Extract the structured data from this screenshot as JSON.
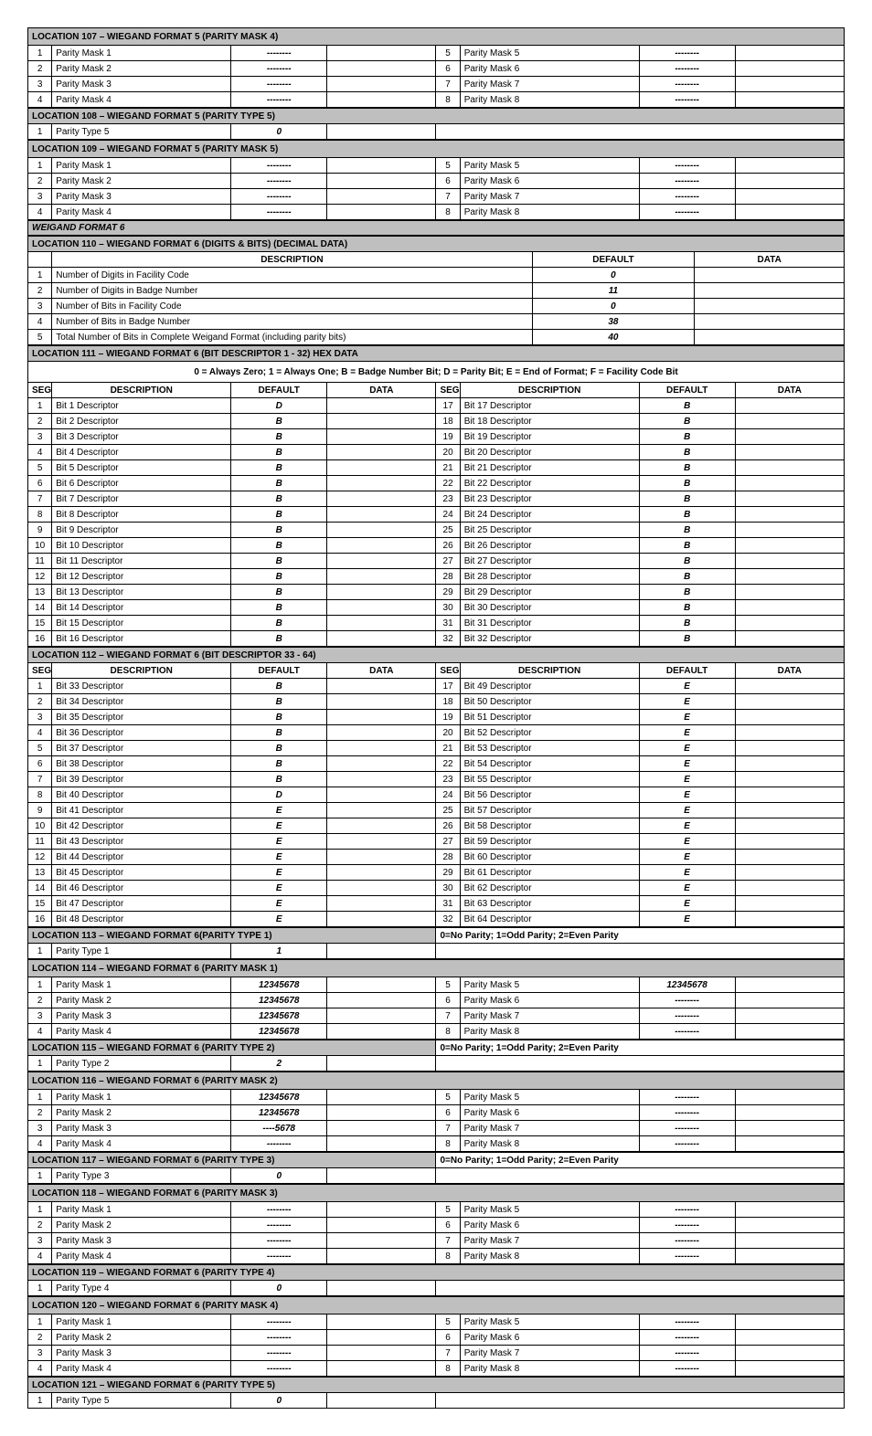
{
  "dashes": "--------",
  "parityNote": "0=No Parity;  1=Odd Parity;  2=Even Parity",
  "legend111": "0 = Always Zero; 1 = Always One; B = Badge Number Bit; D = Parity Bit; E = End of Format; F = Facility Code Bit",
  "loc107": {
    "title": "LOCATION 107 – WIEGAND FORMAT 5 (PARITY MASK 4)",
    "rows": [
      {
        "l": "1",
        "ld": "Parity Mask 1",
        "lv": "--------",
        "r": "5",
        "rd": "Parity Mask 5",
        "rv": "--------"
      },
      {
        "l": "2",
        "ld": "Parity Mask 2",
        "lv": "--------",
        "r": "6",
        "rd": "Parity Mask 6",
        "rv": "--------"
      },
      {
        "l": "3",
        "ld": "Parity Mask 3",
        "lv": "--------",
        "r": "7",
        "rd": "Parity Mask 7",
        "rv": "--------"
      },
      {
        "l": "4",
        "ld": "Parity Mask 4",
        "lv": "--------",
        "r": "8",
        "rd": "Parity Mask 8",
        "rv": "--------"
      }
    ]
  },
  "loc108": {
    "title": "LOCATION 108 – WIEGAND FORMAT 5 (PARITY TYPE 5)",
    "row": {
      "l": "1",
      "ld": "Parity Type 5",
      "lv": "0"
    }
  },
  "loc109": {
    "title": "LOCATION 109 – WIEGAND FORMAT 5 (PARITY MASK 5)",
    "rows": [
      {
        "l": "1",
        "ld": "Parity Mask 1",
        "lv": "--------",
        "r": "5",
        "rd": "Parity Mask 5",
        "rv": "--------"
      },
      {
        "l": "2",
        "ld": "Parity Mask 2",
        "lv": "--------",
        "r": "6",
        "rd": "Parity Mask 6",
        "rv": "--------"
      },
      {
        "l": "3",
        "ld": "Parity Mask 3",
        "lv": "--------",
        "r": "7",
        "rd": "Parity Mask 7",
        "rv": "--------"
      },
      {
        "l": "4",
        "ld": "Parity Mask 4",
        "lv": "--------",
        "r": "8",
        "rd": "Parity Mask 8",
        "rv": "--------"
      }
    ]
  },
  "wf6": "WEIGAND FORMAT 6",
  "loc110": {
    "title": "LOCATION 110 – WIEGAND FORMAT 6 (DIGITS & BITS)  (DECIMAL DATA)",
    "hdr": {
      "desc": "DESCRIPTION",
      "def": "DEFAULT",
      "data": "DATA"
    },
    "rows": [
      {
        "n": "1",
        "d": "Number of Digits in Facility Code",
        "v": "0"
      },
      {
        "n": "2",
        "d": "Number of Digits in Badge Number",
        "v": "11"
      },
      {
        "n": "3",
        "d": "Number of Bits in Facility Code",
        "v": "0"
      },
      {
        "n": "4",
        "d": "Number of Bits in Badge Number",
        "v": "38"
      },
      {
        "n": "5",
        "d": "Total Number of Bits in Complete Weigand Format (including parity bits)",
        "v": "40"
      }
    ]
  },
  "loc111": {
    "title": "LOCATION 111 – WIEGAND FORMAT 6 (BIT DESCRIPTOR 1 - 32)  HEX DATA",
    "hdr": {
      "seg": "SEG",
      "desc": "DESCRIPTION",
      "def": "DEFAULT",
      "data": "DATA"
    },
    "left": [
      {
        "n": "1",
        "d": "Bit 1 Descriptor",
        "v": "D"
      },
      {
        "n": "2",
        "d": "Bit 2 Descriptor",
        "v": "B"
      },
      {
        "n": "3",
        "d": "Bit 3 Descriptor",
        "v": "B"
      },
      {
        "n": "4",
        "d": "Bit 4 Descriptor",
        "v": "B"
      },
      {
        "n": "5",
        "d": "Bit 5 Descriptor",
        "v": "B"
      },
      {
        "n": "6",
        "d": "Bit 6 Descriptor",
        "v": "B"
      },
      {
        "n": "7",
        "d": "Bit 7 Descriptor",
        "v": "B"
      },
      {
        "n": "8",
        "d": "Bit 8 Descriptor",
        "v": "B"
      },
      {
        "n": "9",
        "d": "Bit 9 Descriptor",
        "v": "B"
      },
      {
        "n": "10",
        "d": "Bit 10 Descriptor",
        "v": "B"
      },
      {
        "n": "11",
        "d": "Bit 11 Descriptor",
        "v": "B"
      },
      {
        "n": "12",
        "d": "Bit 12 Descriptor",
        "v": "B"
      },
      {
        "n": "13",
        "d": "Bit 13 Descriptor",
        "v": "B"
      },
      {
        "n": "14",
        "d": "Bit 14 Descriptor",
        "v": "B"
      },
      {
        "n": "15",
        "d": "Bit 15 Descriptor",
        "v": "B"
      },
      {
        "n": "16",
        "d": "Bit 16 Descriptor",
        "v": "B"
      }
    ],
    "right": [
      {
        "n": "17",
        "d": "Bit 17 Descriptor",
        "v": "B"
      },
      {
        "n": "18",
        "d": "Bit 18 Descriptor",
        "v": "B"
      },
      {
        "n": "19",
        "d": "Bit 19 Descriptor",
        "v": "B"
      },
      {
        "n": "20",
        "d": "Bit 20 Descriptor",
        "v": "B"
      },
      {
        "n": "21",
        "d": "Bit 21 Descriptor",
        "v": "B"
      },
      {
        "n": "22",
        "d": "Bit 22 Descriptor",
        "v": "B"
      },
      {
        "n": "23",
        "d": "Bit 23 Descriptor",
        "v": "B"
      },
      {
        "n": "24",
        "d": "Bit 24 Descriptor",
        "v": "B"
      },
      {
        "n": "25",
        "d": "Bit 25 Descriptor",
        "v": "B"
      },
      {
        "n": "26",
        "d": "Bit 26 Descriptor",
        "v": "B"
      },
      {
        "n": "27",
        "d": "Bit 27 Descriptor",
        "v": "B"
      },
      {
        "n": "28",
        "d": "Bit 28 Descriptor",
        "v": "B"
      },
      {
        "n": "29",
        "d": "Bit 29 Descriptor",
        "v": "B"
      },
      {
        "n": "30",
        "d": "Bit 30 Descriptor",
        "v": "B"
      },
      {
        "n": "31",
        "d": "Bit 31 Descriptor",
        "v": "B"
      },
      {
        "n": "32",
        "d": "Bit 32 Descriptor",
        "v": "B"
      }
    ]
  },
  "loc112": {
    "title": "LOCATION 112 – WIEGAND FORMAT 6 (BIT DESCRIPTOR 33 - 64)",
    "left": [
      {
        "n": "1",
        "d": "Bit 33 Descriptor",
        "v": "B"
      },
      {
        "n": "2",
        "d": "Bit 34 Descriptor",
        "v": "B"
      },
      {
        "n": "3",
        "d": "Bit 35 Descriptor",
        "v": "B"
      },
      {
        "n": "4",
        "d": "Bit 36 Descriptor",
        "v": "B"
      },
      {
        "n": "5",
        "d": "Bit 37 Descriptor",
        "v": "B"
      },
      {
        "n": "6",
        "d": "Bit 38 Descriptor",
        "v": "B"
      },
      {
        "n": "7",
        "d": "Bit 39 Descriptor",
        "v": "B"
      },
      {
        "n": "8",
        "d": "Bit 40 Descriptor",
        "v": "D"
      },
      {
        "n": "9",
        "d": "Bit 41 Descriptor",
        "v": "E"
      },
      {
        "n": "10",
        "d": "Bit 42 Descriptor",
        "v": "E"
      },
      {
        "n": "11",
        "d": "Bit 43 Descriptor",
        "v": "E"
      },
      {
        "n": "12",
        "d": "Bit 44 Descriptor",
        "v": "E"
      },
      {
        "n": "13",
        "d": "Bit 45 Descriptor",
        "v": "E"
      },
      {
        "n": "14",
        "d": "Bit 46 Descriptor",
        "v": "E"
      },
      {
        "n": "15",
        "d": "Bit 47 Descriptor",
        "v": "E"
      },
      {
        "n": "16",
        "d": "Bit 48 Descriptor",
        "v": "E"
      }
    ],
    "right": [
      {
        "n": "17",
        "d": "Bit 49 Descriptor",
        "v": "E"
      },
      {
        "n": "18",
        "d": "Bit 50 Descriptor",
        "v": "E"
      },
      {
        "n": "19",
        "d": "Bit 51 Descriptor",
        "v": "E"
      },
      {
        "n": "20",
        "d": "Bit 52 Descriptor",
        "v": "E"
      },
      {
        "n": "21",
        "d": "Bit 53 Descriptor",
        "v": "E"
      },
      {
        "n": "22",
        "d": "Bit 54 Descriptor",
        "v": "E"
      },
      {
        "n": "23",
        "d": "Bit 55 Descriptor",
        "v": "E"
      },
      {
        "n": "24",
        "d": "Bit 56 Descriptor",
        "v": "E"
      },
      {
        "n": "25",
        "d": "Bit 57 Descriptor",
        "v": "E"
      },
      {
        "n": "26",
        "d": "Bit 58 Descriptor",
        "v": "E"
      },
      {
        "n": "27",
        "d": "Bit 59 Descriptor",
        "v": "E"
      },
      {
        "n": "28",
        "d": "Bit 60 Descriptor",
        "v": "E"
      },
      {
        "n": "29",
        "d": "Bit 61 Descriptor",
        "v": "E"
      },
      {
        "n": "30",
        "d": "Bit 62 Descriptor",
        "v": "E"
      },
      {
        "n": "31",
        "d": "Bit 63 Descriptor",
        "v": "E"
      },
      {
        "n": "32",
        "d": "Bit 64 Descriptor",
        "v": "E"
      }
    ]
  },
  "loc113": {
    "title": "LOCATION 113 – WIEGAND FORMAT 6(PARITY TYPE 1)",
    "row": {
      "l": "1",
      "ld": "Parity Type 1",
      "lv": "1"
    }
  },
  "loc114": {
    "title": "LOCATION 114 – WIEGAND FORMAT 6 (PARITY MASK 1)",
    "rows": [
      {
        "l": "1",
        "ld": "Parity Mask 1",
        "lv": "12345678",
        "r": "5",
        "rd": "Parity Mask 5",
        "rv": "12345678"
      },
      {
        "l": "2",
        "ld": "Parity Mask 2",
        "lv": "12345678",
        "r": "6",
        "rd": "Parity Mask 6",
        "rv": "--------"
      },
      {
        "l": "3",
        "ld": "Parity Mask 3",
        "lv": "12345678",
        "r": "7",
        "rd": "Parity Mask 7",
        "rv": "--------"
      },
      {
        "l": "4",
        "ld": "Parity Mask 4",
        "lv": "12345678",
        "r": "8",
        "rd": "Parity Mask 8",
        "rv": "--------"
      }
    ]
  },
  "loc115": {
    "title": "LOCATION 115 – WIEGAND FORMAT 6 (PARITY TYPE 2)",
    "row": {
      "l": "1",
      "ld": "Parity Type 2",
      "lv": "2"
    }
  },
  "loc116": {
    "title": "LOCATION 116 – WIEGAND FORMAT 6 (PARITY MASK 2)",
    "rows": [
      {
        "l": "1",
        "ld": "Parity Mask 1",
        "lv": "12345678",
        "r": "5",
        "rd": "Parity Mask 5",
        "rv": "--------"
      },
      {
        "l": "2",
        "ld": "Parity Mask 2",
        "lv": "12345678",
        "r": "6",
        "rd": "Parity Mask 6",
        "rv": "--------"
      },
      {
        "l": "3",
        "ld": "Parity Mask 3",
        "lv": "----5678",
        "r": "7",
        "rd": "Parity Mask 7",
        "rv": "--------"
      },
      {
        "l": "4",
        "ld": "Parity Mask 4",
        "lv": "--------",
        "r": "8",
        "rd": "Parity Mask 8",
        "rv": "--------"
      }
    ]
  },
  "loc117": {
    "title": "LOCATION 117 – WIEGAND FORMAT 6 (PARITY TYPE 3)",
    "row": {
      "l": "1",
      "ld": "Parity Type 3",
      "lv": "0"
    }
  },
  "loc118": {
    "title": "LOCATION 118 – WIEGAND FORMAT 6 (PARITY MASK 3)",
    "rows": [
      {
        "l": "1",
        "ld": "Parity Mask 1",
        "lv": "--------",
        "r": "5",
        "rd": "Parity Mask 5",
        "rv": "--------"
      },
      {
        "l": "2",
        "ld": "Parity Mask 2",
        "lv": "--------",
        "r": "6",
        "rd": "Parity Mask 6",
        "rv": "--------"
      },
      {
        "l": "3",
        "ld": "Parity Mask 3",
        "lv": "--------",
        "r": "7",
        "rd": "Parity Mask 7",
        "rv": "--------"
      },
      {
        "l": "4",
        "ld": "Parity Mask 4",
        "lv": "--------",
        "r": "8",
        "rd": "Parity Mask 8",
        "rv": "--------"
      }
    ]
  },
  "loc119": {
    "title": "LOCATION 119 – WIEGAND FORMAT 6 (PARITY TYPE 4)",
    "row": {
      "l": "1",
      "ld": "Parity Type 4",
      "lv": "0"
    }
  },
  "loc120": {
    "title": "LOCATION 120 – WIEGAND FORMAT 6 (PARITY MASK 4)",
    "rows": [
      {
        "l": "1",
        "ld": "Parity Mask 1",
        "lv": "--------",
        "r": "5",
        "rd": "Parity Mask 5",
        "rv": "--------"
      },
      {
        "l": "2",
        "ld": "Parity Mask 2",
        "lv": "--------",
        "r": "6",
        "rd": "Parity Mask 6",
        "rv": "--------"
      },
      {
        "l": "3",
        "ld": "Parity Mask 3",
        "lv": "--------",
        "r": "7",
        "rd": "Parity Mask 7",
        "rv": "--------"
      },
      {
        "l": "4",
        "ld": "Parity Mask 4",
        "lv": "--------",
        "r": "8",
        "rd": "Parity Mask 8",
        "rv": "--------"
      }
    ]
  },
  "loc121": {
    "title": "LOCATION 121 – WIEGAND FORMAT 6 (PARITY TYPE 5)",
    "row": {
      "l": "1",
      "ld": "Parity Type 5",
      "lv": "0"
    }
  }
}
